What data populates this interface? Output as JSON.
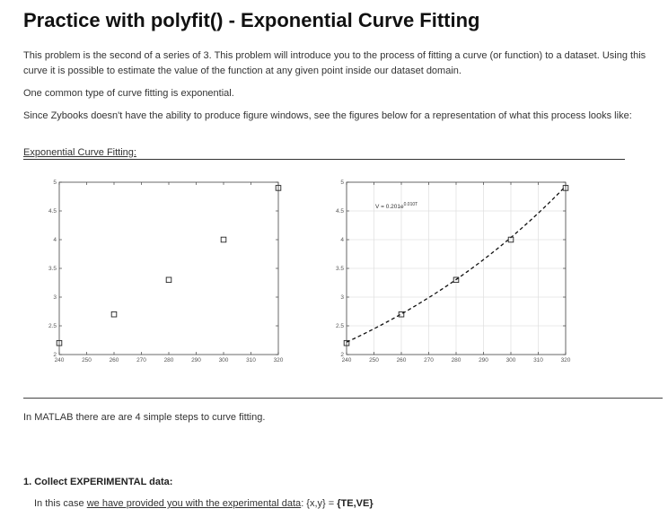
{
  "page": {
    "title": "Practice with polyfit() - Exponential Curve Fitting",
    "intro": "This problem is the second of a series of 3. This problem will introduce you to the process of fitting a curve (or function) to a dataset. Using this curve it is possible to estimate the value of the function at any given point inside our dataset domain.",
    "common_type": "One common type of curve fitting is exponential.",
    "zybooks_note": "Since Zybooks doesn't have the ability to produce figure windows, see the figures below for a representation of what this process looks like:",
    "figure_caption": "Exponential Curve Fitting:",
    "steps_intro": "In MATLAB there are are 4 simple steps to curve fitting.",
    "step1_title": "1. Collect EXPERIMENTAL data:",
    "step1_prefix": "In this case ",
    "step1_link": "we have provided you with the experimental data",
    "step1_suffix": ": {x,y} = ",
    "step1_vars": "{TE,VE}"
  },
  "chart_data": [
    {
      "type": "scatter",
      "x": [
        240,
        260,
        280,
        300,
        320
      ],
      "y": [
        2.2,
        2.7,
        3.3,
        4.0,
        4.9
      ],
      "xlim": [
        240,
        320
      ],
      "ylim": [
        2,
        5
      ],
      "xticks": [
        "240",
        "250",
        "260",
        "270",
        "280",
        "290",
        "300",
        "310",
        "320"
      ],
      "yticks": [
        "2",
        "2.5",
        "3",
        "3.5",
        "4",
        "4.5",
        "5"
      ],
      "grid": false,
      "marker": "square"
    },
    {
      "type": "scatter",
      "x": [
        240,
        260,
        280,
        300,
        320
      ],
      "y": [
        2.2,
        2.7,
        3.3,
        4.0,
        4.9
      ],
      "xlim": [
        240,
        320
      ],
      "ylim": [
        2,
        5
      ],
      "xticks": [
        "240",
        "250",
        "260",
        "270",
        "280",
        "290",
        "300",
        "310",
        "320"
      ],
      "yticks": [
        "2",
        "2.5",
        "3",
        "3.5",
        "4",
        "4.5",
        "5"
      ],
      "grid": true,
      "marker": "square",
      "fit": {
        "style": "dashed",
        "coef": 0.201,
        "rate": 0.01
      },
      "equation": {
        "base": "V = 0.201e",
        "exponent": "0.010T"
      }
    }
  ]
}
